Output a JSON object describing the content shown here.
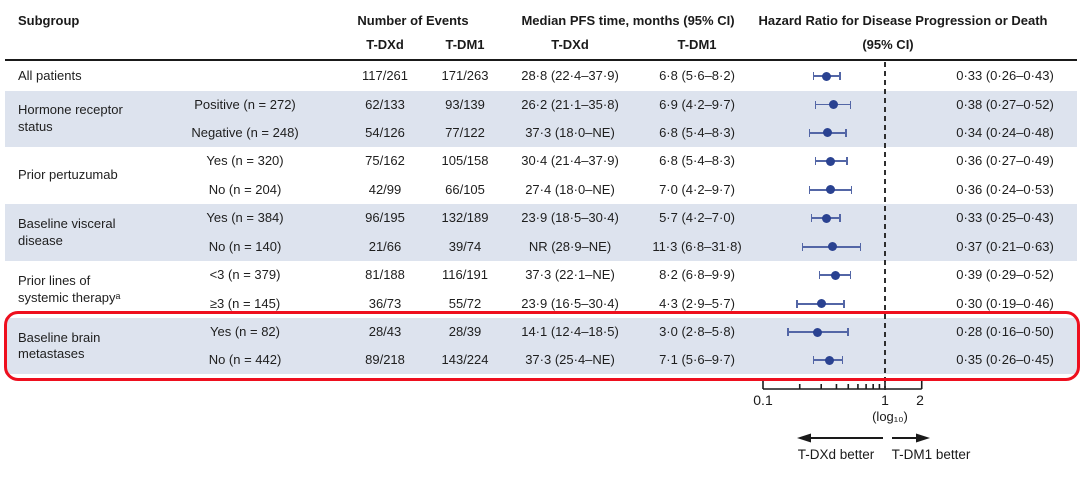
{
  "figure": {
    "header": {
      "subgroup": "Subgroup",
      "number_of_events": "Number of Events",
      "events_tdxd": "T-DXd",
      "events_tdm1": "T-DM1",
      "median_pfs": "Median PFS time, months (95% CI)",
      "median_tdxd": "T-DXd",
      "median_tdm1": "T-DM1",
      "hazard_ratio_line1": "Hazard Ratio for Disease Progression or Death",
      "hazard_ratio_line2": "(95% CI)"
    },
    "axis": {
      "tick_0_1": "0.1",
      "tick_1": "1",
      "tick_2": "2",
      "scale_label": "(log₁₀)",
      "left_arrow_label": "T-DXd better",
      "right_arrow_label": "T-DM1 better"
    }
  },
  "chart_data": {
    "type": "forest",
    "x_scale": "log10",
    "x_ticks": [
      0.1,
      1,
      2
    ],
    "x_minor_ticks": [
      0.2,
      0.3,
      0.4,
      0.5,
      0.6,
      0.7,
      0.8,
      0.9
    ],
    "reference_line": 1.0,
    "xlabel": "Hazard Ratio for Disease Progression or Death (95% CI)",
    "direction_labels": {
      "left": "T-DXd better",
      "right": "T-DM1 better"
    },
    "colors": {
      "marker": "#2a4291",
      "ci_line": "#5366a6",
      "shade": "#dde3ee",
      "highlight": "#ee0f1e",
      "reference": "#2e2e2e"
    },
    "groups": [
      {
        "label_lines": [
          "All patients"
        ],
        "shaded": false,
        "highlighted": false,
        "rows": [
          {
            "level": "",
            "events_tdxd": "117/261",
            "events_tdm1": "171/263",
            "median_tdxd": "28·8 (22·4–37·9)",
            "median_tdm1": "6·8 (5·6–8·2)",
            "hr": 0.33,
            "ci_low": 0.26,
            "ci_high": 0.43,
            "hr_text": "0·33 (0·26–0·43)"
          }
        ]
      },
      {
        "label_lines": [
          "Hormone receptor",
          "status"
        ],
        "shaded": true,
        "highlighted": false,
        "rows": [
          {
            "level": "Positive (n = 272)",
            "events_tdxd": "62/133",
            "events_tdm1": "93/139",
            "median_tdxd": "26·2 (21·1–35·8)",
            "median_tdm1": "6·9 (4·2–9·7)",
            "hr": 0.38,
            "ci_low": 0.27,
            "ci_high": 0.52,
            "hr_text": "0·38 (0·27–0·52)"
          },
          {
            "level": "Negative (n = 248)",
            "events_tdxd": "54/126",
            "events_tdm1": "77/122",
            "median_tdxd": "37·3 (18·0–NE)",
            "median_tdm1": "6·8 (5·4–8·3)",
            "hr": 0.34,
            "ci_low": 0.24,
            "ci_high": 0.48,
            "hr_text": "0·34 (0·24–0·48)"
          }
        ]
      },
      {
        "label_lines": [
          "Prior pertuzumab"
        ],
        "shaded": false,
        "highlighted": false,
        "rows": [
          {
            "level": "Yes (n = 320)",
            "events_tdxd": "75/162",
            "events_tdm1": "105/158",
            "median_tdxd": "30·4 (21·4–37·9)",
            "median_tdm1": "6·8 (5·4–8·3)",
            "hr": 0.36,
            "ci_low": 0.27,
            "ci_high": 0.49,
            "hr_text": "0·36 (0·27–0·49)"
          },
          {
            "level": "No (n = 204)",
            "events_tdxd": "42/99",
            "events_tdm1": "66/105",
            "median_tdxd": "27·4 (18·0–NE)",
            "median_tdm1": "7·0 (4·2–9·7)",
            "hr": 0.36,
            "ci_low": 0.24,
            "ci_high": 0.53,
            "hr_text": "0·36 (0·24–0·53)"
          }
        ]
      },
      {
        "label_lines": [
          "Baseline visceral",
          "disease"
        ],
        "shaded": true,
        "highlighted": false,
        "rows": [
          {
            "level": "Yes (n = 384)",
            "events_tdxd": "96/195",
            "events_tdm1": "132/189",
            "median_tdxd": "23·9 (18·5–30·4)",
            "median_tdm1": "5·7 (4·2–7·0)",
            "hr": 0.33,
            "ci_low": 0.25,
            "ci_high": 0.43,
            "hr_text": "0·33 (0·25–0·43)"
          },
          {
            "level": "No (n = 140)",
            "events_tdxd": "21/66",
            "events_tdm1": "39/74",
            "median_tdxd": "NR (28·9–NE)",
            "median_tdm1": "11·3 (6·8–31·8)",
            "hr": 0.37,
            "ci_low": 0.21,
            "ci_high": 0.63,
            "hr_text": "0·37 (0·21–0·63)"
          }
        ]
      },
      {
        "label_lines": [
          "Prior lines of",
          "systemic therapyᵃ"
        ],
        "shaded": false,
        "highlighted": false,
        "rows": [
          {
            "level": "<3 (n = 379)",
            "events_tdxd": "81/188",
            "events_tdm1": "116/191",
            "median_tdxd": "37·3 (22·1–NE)",
            "median_tdm1": "8·2 (6·8–9·9)",
            "hr": 0.39,
            "ci_low": 0.29,
            "ci_high": 0.52,
            "hr_text": "0·39 (0·29–0·52)"
          },
          {
            "level": "≥3 (n = 145)",
            "events_tdxd": "36/73",
            "events_tdm1": "55/72",
            "median_tdxd": "23·9 (16·5–30·4)",
            "median_tdm1": "4·3 (2·9–5·7)",
            "hr": 0.3,
            "ci_low": 0.19,
            "ci_high": 0.46,
            "hr_text": "0·30 (0·19–0·46)"
          }
        ]
      },
      {
        "label_lines": [
          "Baseline brain",
          "metastases"
        ],
        "shaded": true,
        "highlighted": true,
        "rows": [
          {
            "level": "Yes (n = 82)",
            "events_tdxd": "28/43",
            "events_tdm1": "28/39",
            "median_tdxd": "14·1 (12·4–18·5)",
            "median_tdm1": "3·0 (2·8–5·8)",
            "hr": 0.28,
            "ci_low": 0.16,
            "ci_high": 0.5,
            "hr_text": "0·28 (0·16–0·50)"
          },
          {
            "level": "No (n = 442)",
            "events_tdxd": "89/218",
            "events_tdm1": "143/224",
            "median_tdxd": "37·3 (25·4–NE)",
            "median_tdm1": "7·1 (5·6–9·7)",
            "hr": 0.35,
            "ci_low": 0.26,
            "ci_high": 0.45,
            "hr_text": "0·35 (0·26–0·45)"
          }
        ]
      }
    ]
  }
}
